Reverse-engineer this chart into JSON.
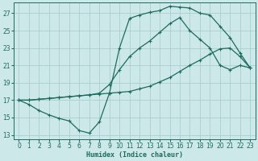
{
  "xlabel": "Humidex (Indice chaleur)",
  "bg_color": "#cce8e8",
  "line_color": "#1e6b5e",
  "grid_color": "#aacece",
  "xlim": [
    -0.5,
    23.5
  ],
  "ylim": [
    12.5,
    28.2
  ],
  "xticks": [
    0,
    1,
    2,
    3,
    4,
    5,
    6,
    7,
    8,
    9,
    10,
    11,
    12,
    13,
    14,
    15,
    16,
    17,
    18,
    19,
    20,
    21,
    22,
    23
  ],
  "yticks": [
    13,
    15,
    17,
    19,
    21,
    23,
    25,
    27
  ],
  "line1_x": [
    0,
    1,
    2,
    3,
    4,
    5,
    6,
    7,
    8,
    9,
    10,
    11,
    12,
    13,
    14,
    15,
    16,
    17,
    18,
    19,
    20,
    21,
    22,
    23
  ],
  "line1_y": [
    17.0,
    16.5,
    15.8,
    15.3,
    14.9,
    14.6,
    13.5,
    13.2,
    14.5,
    17.8,
    23.0,
    26.4,
    26.8,
    27.1,
    27.3,
    27.8,
    27.7,
    27.6,
    27.0,
    26.8,
    25.5,
    24.2,
    22.4,
    20.7
  ],
  "line2_x": [
    0,
    1,
    2,
    3,
    4,
    5,
    6,
    7,
    8,
    9,
    10,
    11,
    12,
    13,
    14,
    15,
    16,
    17,
    18,
    19,
    20,
    21,
    22,
    23
  ],
  "line2_y": [
    17.0,
    17.0,
    17.1,
    17.2,
    17.3,
    17.4,
    17.5,
    17.6,
    17.8,
    18.8,
    20.5,
    22.0,
    23.0,
    23.8,
    24.8,
    25.8,
    26.5,
    25.0,
    24.0,
    23.0,
    21.0,
    20.5,
    21.0,
    20.7
  ],
  "line3_x": [
    0,
    1,
    2,
    3,
    4,
    5,
    6,
    7,
    8,
    9,
    10,
    11,
    12,
    13,
    14,
    15,
    16,
    17,
    18,
    19,
    20,
    21,
    22,
    23
  ],
  "line3_y": [
    17.0,
    17.0,
    17.1,
    17.2,
    17.3,
    17.4,
    17.5,
    17.6,
    17.7,
    17.8,
    17.9,
    18.0,
    18.3,
    18.6,
    19.1,
    19.6,
    20.3,
    21.0,
    21.6,
    22.3,
    22.9,
    23.0,
    22.0,
    20.7
  ]
}
